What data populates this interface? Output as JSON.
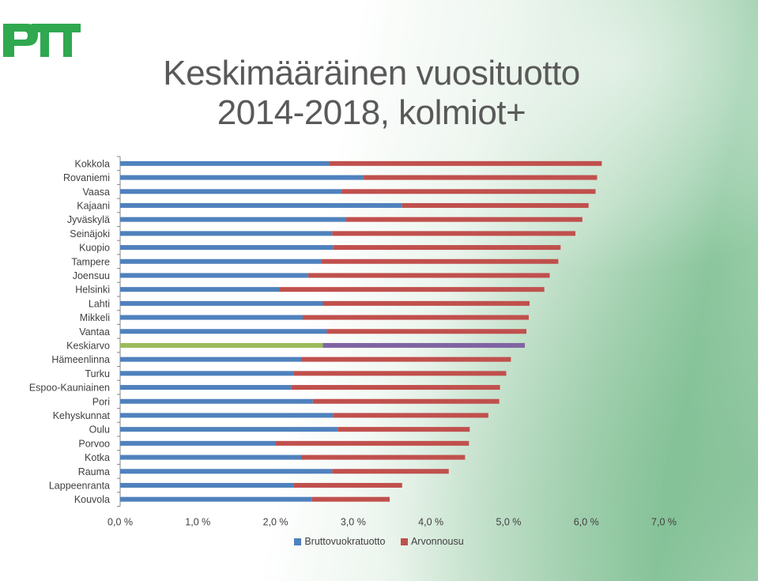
{
  "logo": {
    "text": "PTT",
    "color": "#2fa84f"
  },
  "title": {
    "line1": "Keskimääräinen vuosituotto",
    "line2": "2014-2018, kolmiot+"
  },
  "colors": {
    "brutto": "#4f81bd",
    "arvo": "#c0504d",
    "highlight_brutto": "#9bbb59",
    "highlight_arvo": "#8064a2"
  },
  "chart_data": {
    "type": "bar",
    "orientation": "horizontal",
    "stacked": true,
    "categories": [
      "Kokkola",
      "Rovaniemi",
      "Vaasa",
      "Kajaani",
      "Jyväskylä",
      "Seinäjoki",
      "Kuopio",
      "Tampere",
      "Joensuu",
      "Helsinki",
      "Lahti",
      "Mikkeli",
      "Vantaa",
      "Keskiarvo",
      "Hämeenlinna",
      "Turku",
      "Espoo-Kauniainen",
      "Pori",
      "Kehyskunnat",
      "Oulu",
      "Porvoo",
      "Kotka",
      "Rauma",
      "Lappeenranta",
      "Kouvola"
    ],
    "highlight_category": "Keskiarvo",
    "series": [
      {
        "name": "Bruttovuokratuotto",
        "values": [
          2.69,
          3.13,
          2.85,
          3.63,
          2.91,
          2.73,
          2.74,
          2.59,
          2.42,
          2.05,
          2.61,
          2.35,
          2.66,
          2.61,
          2.33,
          2.23,
          2.2,
          2.48,
          2.74,
          2.8,
          2.0,
          2.33,
          2.73,
          2.23,
          2.47
        ]
      },
      {
        "name": "Arvonnousu",
        "values": [
          3.51,
          3.01,
          3.27,
          2.4,
          3.04,
          3.13,
          2.93,
          3.05,
          3.11,
          3.41,
          2.66,
          2.91,
          2.57,
          2.6,
          2.7,
          2.74,
          2.69,
          2.4,
          2.0,
          1.7,
          2.49,
          2.11,
          1.5,
          1.4,
          1.0
        ]
      }
    ],
    "xlim": [
      0,
      7
    ],
    "xticks": [
      "0,0 %",
      "1,0 %",
      "2,0 %",
      "3,0 %",
      "4,0 %",
      "5,0 %",
      "6,0 %",
      "7,0 %"
    ],
    "legend_position": "bottom"
  }
}
